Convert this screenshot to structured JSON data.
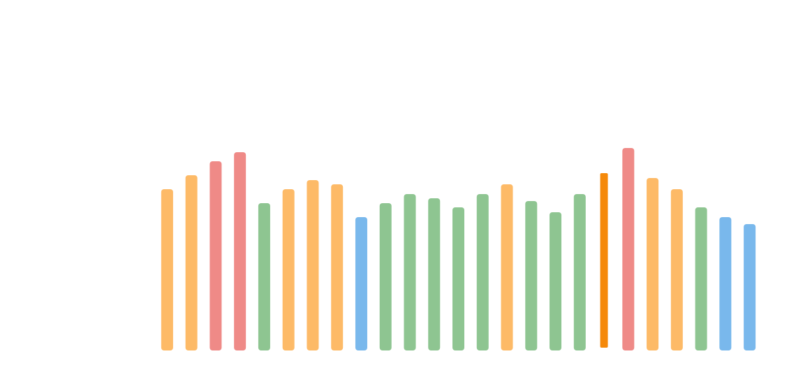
{
  "chart_data": {
    "type": "bar",
    "categories": [
      null,
      null,
      null,
      null,
      null,
      null,
      null,
      null,
      null,
      null,
      null,
      null,
      null,
      null,
      null,
      null,
      null,
      null,
      null,
      null,
      null,
      null,
      null,
      null,
      null
    ],
    "values": [
      231,
      251,
      271,
      284,
      211,
      231,
      244,
      238,
      191,
      211,
      224,
      218,
      205,
      224,
      238,
      214,
      198,
      224,
      254,
      290,
      247,
      231,
      205,
      191,
      181
    ],
    "colors": [
      "#fdba67",
      "#fdba67",
      "#ef8a87",
      "#ef8a87",
      "#8ec591",
      "#fdba67",
      "#fdba67",
      "#fdba67",
      "#79b8ec",
      "#8ec591",
      "#8ec591",
      "#8ec591",
      "#8ec591",
      "#8ec591",
      "#fdba67",
      "#8ec591",
      "#8ec591",
      "#8ec591",
      "#f5890a",
      "#ef8a87",
      "#fdba67",
      "#fdba67",
      "#8ec591",
      "#79b8ec",
      "#79b8ec"
    ],
    "highlight": 18,
    "ylim": [
      0,
      500
    ]
  }
}
